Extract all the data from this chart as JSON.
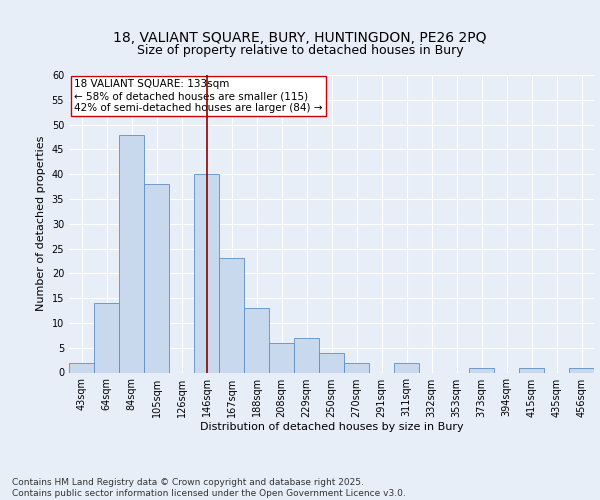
{
  "title_line1": "18, VALIANT SQUARE, BURY, HUNTINGDON, PE26 2PQ",
  "title_line2": "Size of property relative to detached houses in Bury",
  "xlabel": "Distribution of detached houses by size in Bury",
  "ylabel": "Number of detached properties",
  "categories": [
    "43sqm",
    "64sqm",
    "84sqm",
    "105sqm",
    "126sqm",
    "146sqm",
    "167sqm",
    "188sqm",
    "208sqm",
    "229sqm",
    "250sqm",
    "270sqm",
    "291sqm",
    "311sqm",
    "332sqm",
    "353sqm",
    "373sqm",
    "394sqm",
    "415sqm",
    "435sqm",
    "456sqm"
  ],
  "values": [
    2,
    14,
    48,
    38,
    0,
    40,
    23,
    13,
    6,
    7,
    4,
    2,
    0,
    2,
    0,
    0,
    1,
    0,
    1,
    0,
    1
  ],
  "bar_color": "#c9d9ed",
  "bar_edge_color": "#5b8fc7",
  "vline_color": "#8b0000",
  "annotation_text": "18 VALIANT SQUARE: 133sqm\n← 58% of detached houses are smaller (115)\n42% of semi-detached houses are larger (84) →",
  "annotation_box_color": "#ffffff",
  "annotation_box_edge_color": "#cc0000",
  "ylim": [
    0,
    60
  ],
  "yticks": [
    0,
    5,
    10,
    15,
    20,
    25,
    30,
    35,
    40,
    45,
    50,
    55,
    60
  ],
  "background_color": "#e8eef7",
  "plot_bg_color": "#e8eef7",
  "footer": "Contains HM Land Registry data © Crown copyright and database right 2025.\nContains public sector information licensed under the Open Government Licence v3.0.",
  "title_fontsize": 10,
  "subtitle_fontsize": 9,
  "axis_label_fontsize": 8,
  "tick_fontsize": 7,
  "annotation_fontsize": 7.5,
  "footer_fontsize": 6.5
}
